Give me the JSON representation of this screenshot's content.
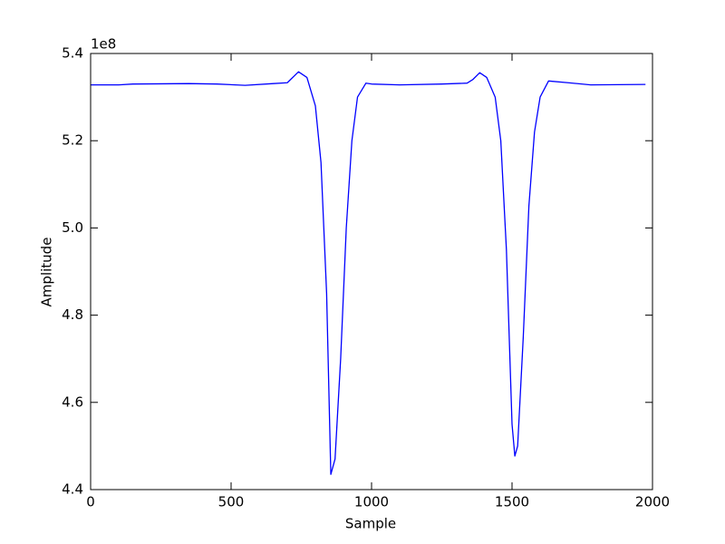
{
  "chart_data": {
    "type": "line",
    "xlabel": "Sample",
    "ylabel": "Amplitude",
    "y_offset_label": "1e8",
    "x": [
      0,
      100,
      150,
      350,
      450,
      550,
      650,
      700,
      740,
      770,
      800,
      820,
      840,
      855,
      870,
      890,
      910,
      930,
      950,
      980,
      1000,
      1100,
      1250,
      1340,
      1360,
      1385,
      1410,
      1440,
      1460,
      1480,
      1500,
      1510,
      1520,
      1540,
      1560,
      1580,
      1600,
      1630,
      1700,
      1780,
      1975
    ],
    "values": [
      5.328,
      5.328,
      5.33,
      5.331,
      5.33,
      5.327,
      5.331,
      5.333,
      5.358,
      5.345,
      5.28,
      5.15,
      4.85,
      4.435,
      4.47,
      4.7,
      5.0,
      5.2,
      5.3,
      5.332,
      5.33,
      5.328,
      5.33,
      5.332,
      5.34,
      5.356,
      5.345,
      5.3,
      5.2,
      4.95,
      4.55,
      4.477,
      4.5,
      4.75,
      5.05,
      5.22,
      5.3,
      5.337,
      5.333,
      5.328,
      5.329
    ],
    "color": "#0000ff",
    "xlim": [
      0,
      2000
    ],
    "xticks": [
      0,
      500,
      1000,
      1500,
      2000
    ],
    "ylim": [
      4.4,
      5.4
    ],
    "yticks": [
      4.4,
      4.6,
      4.8,
      {
        "value": 5,
        "label": "5.0"
      },
      5.2,
      5.4
    ]
  }
}
